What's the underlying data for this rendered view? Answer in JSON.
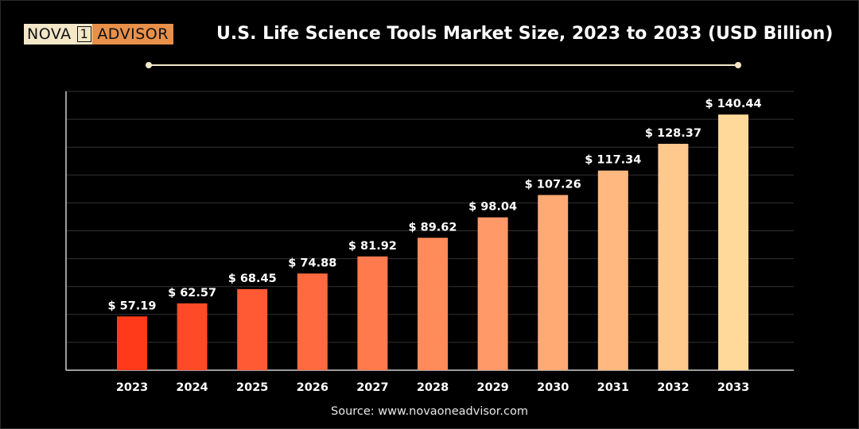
{
  "brand": {
    "logo_left": "NOVA",
    "logo_mid": "1",
    "logo_right": "ADVISOR"
  },
  "source": "Source: www.novaoneadvisor.com",
  "colors": {
    "background": "#000000",
    "bar_start": "#ff3a1a",
    "bar_end": "#ffd99a",
    "grid": "#333333",
    "text": "#ffffff"
  },
  "chart_data": {
    "type": "bar",
    "title": "U.S. Life Science Tools Market Size, 2023 to 2033 (USD Billion)",
    "xlabel": "",
    "ylabel": "",
    "categories": [
      "2023",
      "2024",
      "2025",
      "2026",
      "2027",
      "2028",
      "2029",
      "2030",
      "2031",
      "2032",
      "2033"
    ],
    "values": [
      57.19,
      62.57,
      68.45,
      74.88,
      81.92,
      89.62,
      98.04,
      107.26,
      117.34,
      128.37,
      140.44
    ],
    "value_labels": [
      "$ 57.19",
      "$ 62.57",
      "$ 68.45",
      "$ 74.88",
      "$ 81.92",
      "$ 89.62",
      "$ 98.04",
      "$ 107.26",
      "$ 117.34",
      "$ 128.37",
      "$ 140.44"
    ],
    "ylim": [
      35,
      150
    ],
    "grid": true,
    "legend": "none"
  }
}
